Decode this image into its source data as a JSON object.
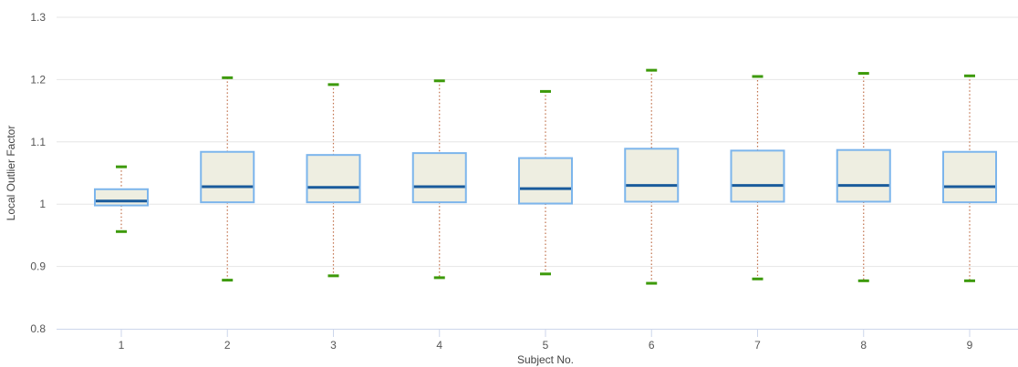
{
  "chart_data": {
    "type": "box",
    "title": "",
    "xlabel": "Subject No.",
    "ylabel": "Local Outlier Factor",
    "ylim": [
      0.8,
      1.3
    ],
    "yticks": [
      0.8,
      0.9,
      1,
      1.1,
      1.2,
      1.3
    ],
    "ytick_labels": [
      "0.8",
      "0.9",
      "1",
      "1.1",
      "1.2",
      "1.3"
    ],
    "grid": "horizontal",
    "categories": [
      "1",
      "2",
      "3",
      "4",
      "5",
      "6",
      "7",
      "8",
      "9"
    ],
    "boxes": [
      {
        "category": "1",
        "whisker_low": 0.956,
        "q1": 0.998,
        "median": 1.005,
        "q3": 1.024,
        "whisker_high": 1.06
      },
      {
        "category": "2",
        "whisker_low": 0.878,
        "q1": 1.003,
        "median": 1.028,
        "q3": 1.084,
        "whisker_high": 1.203
      },
      {
        "category": "3",
        "whisker_low": 0.885,
        "q1": 1.003,
        "median": 1.027,
        "q3": 1.079,
        "whisker_high": 1.192
      },
      {
        "category": "4",
        "whisker_low": 0.882,
        "q1": 1.003,
        "median": 1.028,
        "q3": 1.082,
        "whisker_high": 1.198
      },
      {
        "category": "5",
        "whisker_low": 0.888,
        "q1": 1.001,
        "median": 1.025,
        "q3": 1.074,
        "whisker_high": 1.181
      },
      {
        "category": "6",
        "whisker_low": 0.873,
        "q1": 1.004,
        "median": 1.03,
        "q3": 1.089,
        "whisker_high": 1.215
      },
      {
        "category": "7",
        "whisker_low": 0.88,
        "q1": 1.004,
        "median": 1.03,
        "q3": 1.086,
        "whisker_high": 1.205
      },
      {
        "category": "8",
        "whisker_low": 0.877,
        "q1": 1.004,
        "median": 1.03,
        "q3": 1.087,
        "whisker_high": 1.21
      },
      {
        "category": "9",
        "whisker_low": 0.877,
        "q1": 1.003,
        "median": 1.028,
        "q3": 1.084,
        "whisker_high": 1.206
      }
    ],
    "colors": {
      "box_fill": "#eeeee1",
      "box_stroke": "#7cb5ec",
      "median": "#1a5b9c",
      "whisker": "#c0704a",
      "whisker_cap": "#3d9a0a",
      "grid": "#e6e6e6",
      "axis_line": "#ccd6eb"
    }
  }
}
